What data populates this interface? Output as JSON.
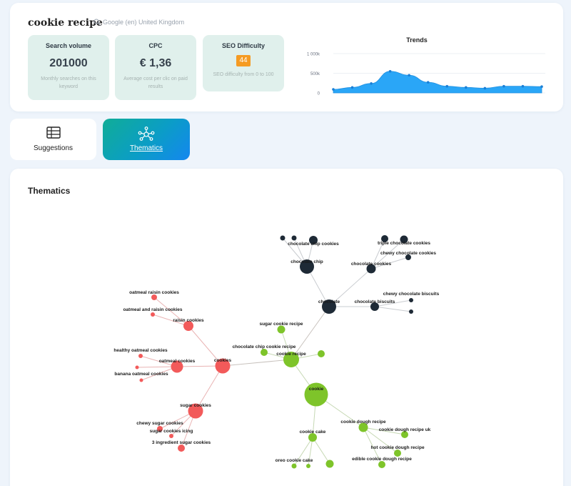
{
  "keyword": {
    "title": "cookie recipe",
    "locale": "Google (en) United Kingdom",
    "search_icon": "search-icon"
  },
  "metrics": {
    "search_volume": {
      "label": "Search volume",
      "value": "201000",
      "desc": "Monthly searches on this keyword"
    },
    "cpc": {
      "label": "CPC",
      "value": "€ 1,36",
      "desc": "Average cost per clic on paid results"
    },
    "seo": {
      "label": "SEO Difficulty",
      "value": "44",
      "desc": "SEO difficulty from 0 to 100",
      "badge_color": "#f59b23"
    }
  },
  "chart_data": {
    "type": "area",
    "title": "Trends",
    "ytick_labels": [
      "1 000k",
      "500k",
      "0"
    ],
    "ylim": [
      0,
      1000
    ],
    "y": [
      90,
      140,
      240,
      550,
      450,
      270,
      170,
      140,
      120,
      170,
      170,
      160
    ],
    "color": "#2aa6f7"
  },
  "tabs": {
    "suggestions": {
      "label": "Suggestions",
      "icon": "table-icon"
    },
    "thematics": {
      "label": "Thematics",
      "icon": "network-icon"
    }
  },
  "section_title": "Thematics",
  "colors": {
    "dark": "#1e2a36",
    "red": "#f25a5a",
    "green": "#7ec42a",
    "link": "#c8c8c8"
  },
  "graph": {
    "nodes": [
      {
        "label": "chocolate",
        "group": "dark"
      },
      {
        "label": "chocolate chip",
        "group": "dark"
      },
      {
        "label": "chocolate chip cookies",
        "group": "dark"
      },
      {
        "label": "",
        "group": "dark"
      },
      {
        "label": "",
        "group": "dark"
      },
      {
        "label": "chocolate cookies",
        "group": "dark"
      },
      {
        "label": "triple chocolate cookies",
        "group": "dark"
      },
      {
        "label": "chewy chocolate cookies",
        "group": "dark"
      },
      {
        "label": "",
        "group": "dark"
      },
      {
        "label": "chocolate biscuits",
        "group": "dark"
      },
      {
        "label": "chewy chocolate biscuits",
        "group": "dark"
      },
      {
        "label": "",
        "group": "dark"
      },
      {
        "label": "cookies",
        "group": "red"
      },
      {
        "label": "raisin cookies",
        "group": "red"
      },
      {
        "label": "oatmeal raisin cookies",
        "group": "red"
      },
      {
        "label": "oatmeal and raisin cookies",
        "group": "red"
      },
      {
        "label": "oatmeal cookies",
        "group": "red"
      },
      {
        "label": "healthy oatmeal cookies",
        "group": "red"
      },
      {
        "label": "banana oatmeal cookies",
        "group": "red"
      },
      {
        "label": "",
        "group": "red"
      },
      {
        "label": "sugar cookies",
        "group": "red"
      },
      {
        "label": "chewy sugar cookies",
        "group": "red"
      },
      {
        "label": "sugar cookies icing",
        "group": "red"
      },
      {
        "label": "3 ingredient sugar cookies",
        "group": "red"
      },
      {
        "label": "cookie recipe",
        "group": "green"
      },
      {
        "label": "sugar cookie recipe",
        "group": "green"
      },
      {
        "label": "chocolate chip cookie recipe",
        "group": "green"
      },
      {
        "label": "",
        "group": "green"
      },
      {
        "label": "cookie",
        "group": "green"
      },
      {
        "label": "cookie dough recipe",
        "group": "green"
      },
      {
        "label": "cookie dough recipe uk",
        "group": "green"
      },
      {
        "label": "hot cookie dough recipe",
        "group": "green"
      },
      {
        "label": "edible cookie dough recipe",
        "group": "green"
      },
      {
        "label": "cookie cake",
        "group": "green"
      },
      {
        "label": "oreo cookie cake",
        "group": "green"
      },
      {
        "label": "",
        "group": "green"
      },
      {
        "label": "",
        "group": "green"
      }
    ]
  }
}
